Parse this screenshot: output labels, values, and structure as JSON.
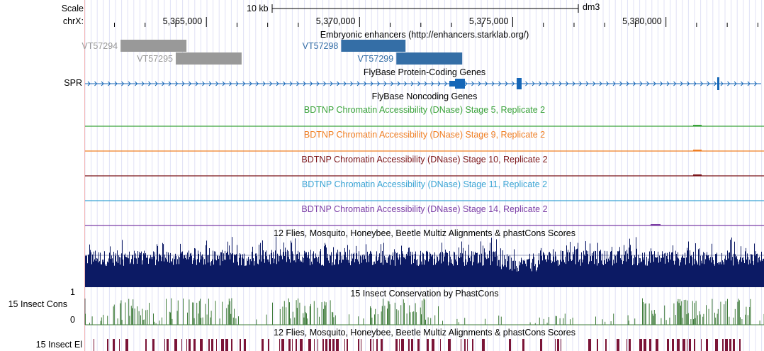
{
  "ruler": {
    "scale_label": "Scale",
    "chrom_label": "chrX:",
    "scalebar_label": "10 kb",
    "assembly": "dm3",
    "ticks": [
      {
        "label": "5,365,000",
        "pos": 5365000
      },
      {
        "label": "5,370,000",
        "pos": 5370000
      },
      {
        "label": "5,375,000",
        "pos": 5375000
      },
      {
        "label": "5,380,000",
        "pos": 5380000
      }
    ]
  },
  "view": {
    "start": 5361040,
    "end": 5383200
  },
  "tracks": {
    "enhancers": {
      "title": "Embryonic enhancers (http://enhancers.starklab.org/)",
      "items": [
        {
          "name": "VT57294",
          "start": 5362200,
          "end": 5364350,
          "color": "#999999",
          "label_side": "left"
        },
        {
          "name": "VT57295",
          "start": 5364000,
          "end": 5366150,
          "color": "#999999",
          "label_side": "left"
        },
        {
          "name": "VT57298",
          "start": 5369400,
          "end": 5371500,
          "color": "#346ea6",
          "label_side": "left"
        },
        {
          "name": "VT57299",
          "start": 5371200,
          "end": 5373350,
          "color": "#346ea6",
          "label_side": "left"
        }
      ]
    },
    "protein_coding": {
      "title": "FlyBase Protein-Coding Genes",
      "gene_label": "SPR",
      "color": "#1566b7"
    },
    "noncoding": {
      "title": "FlyBase Noncoding Genes",
      "color": "#2a80c8"
    },
    "dnase": [
      {
        "title": "BDTNP Chromatin Accessibility (DNase) Stage 5, Replicate 2",
        "color": "#3aa33a"
      },
      {
        "title": "BDTNP Chromatin Accessibility (DNase) Stage 9, Replicate 2",
        "color": "#f07f23"
      },
      {
        "title": "BDTNP Chromatin Accessibility (DNase) Stage 10, Replicate 2",
        "color": "#7b1519"
      },
      {
        "title": "BDTNP Chromatin Accessibility (DNase) Stage 11, Replicate 2",
        "color": "#3aa4d4"
      },
      {
        "title": "BDTNP Chromatin Accessibility (DNase) Stage 14, Replicate 2",
        "color": "#7c3fa6"
      }
    ],
    "multiz": {
      "title": "12 Flies, Mosquito, Honeybee, Beetle Multiz Alignments & phastCons Scores",
      "color": "#0c1a64"
    },
    "phastcons": {
      "title": "15 Insect Conservation by PhastCons",
      "side_label": "15 Insect Cons",
      "y_max_label": "1",
      "y_min_label": "0",
      "color": "#3f7c3a"
    },
    "elements": {
      "title": "12 Flies, Mosquito, Honeybee, Beetle Multiz Alignments & phastCons Scores",
      "side_label": "15 Insect El",
      "color": "#7a1437"
    }
  }
}
